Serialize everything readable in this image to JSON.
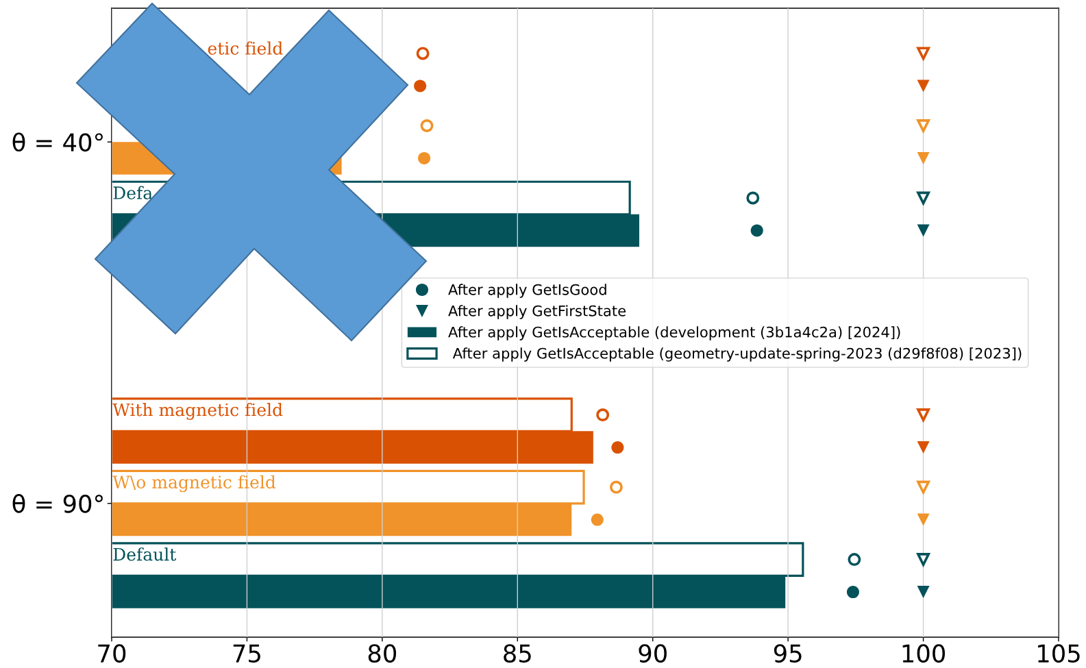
{
  "chart_data": {
    "type": "bar",
    "orientation": "horizontal",
    "categories": [
      "θ = 40°",
      "θ = 90°"
    ],
    "xlim": [
      70,
      105
    ],
    "xticks": [
      70,
      75,
      80,
      85,
      90,
      95,
      100,
      105
    ],
    "grid": "x",
    "legend": "right",
    "annotations": [
      "etic field"
    ],
    "series": [
      {
        "type": "scatter",
        "marker": "circle",
        "color": "#d95204",
        "values": [
          81.5,
          88.15
        ]
      },
      {
        "type": "scatter",
        "marker": "circle",
        "color": "#d95204",
        "values": [
          81.4,
          88.7
        ]
      },
      {
        "type": "scatter",
        "marker": "circle",
        "color": "#f0932a",
        "values": [
          81.65,
          88.65
        ]
      },
      {
        "type": "scatter",
        "marker": "circle",
        "color": "#f0932a",
        "values": [
          81.55,
          87.95
        ]
      },
      {
        "type": "scatter",
        "marker": "circle",
        "color": "#04525a",
        "values": [
          93.7,
          97.45
        ]
      },
      {
        "type": "scatter",
        "marker": "circle",
        "color": "#04525a",
        "name": "After apply GetIsGood",
        "values": [
          93.85,
          97.4
        ]
      },
      {
        "type": "scatter",
        "marker": "triangle",
        "color": "#d95204",
        "values": [
          100,
          100
        ]
      },
      {
        "type": "scatter",
        "marker": "triangle",
        "color": "#d95204",
        "values": [
          100,
          100
        ]
      },
      {
        "type": "scatter",
        "marker": "triangle",
        "color": "#f0932a",
        "values": [
          100,
          100
        ]
      },
      {
        "type": "scatter",
        "marker": "triangle",
        "color": "#f0932a",
        "values": [
          100,
          100
        ]
      },
      {
        "type": "scatter",
        "marker": "triangle",
        "color": "#04525a",
        "values": [
          100,
          100
        ]
      },
      {
        "type": "scatter",
        "marker": "triangle",
        "color": "#04525a",
        "name": "After apply GetFirstState",
        "values": [
          100,
          100
        ]
      },
      {
        "color": "#d95204",
        "values": [
          null,
          87.0
        ],
        "value_labels": [
          null,
          "With magnetic field"
        ]
      },
      {
        "color": "#d95204",
        "values": [
          null,
          87.8
        ]
      },
      {
        "color": "#f0932a",
        "values": [
          null,
          87.45
        ],
        "value_labels": [
          null,
          "W\\o magnetic field"
        ]
      },
      {
        "color": "#f0932a",
        "values": [
          78.5,
          87.0
        ]
      },
      {
        "color": "#04525a",
        "name": " After apply GetIsAcceptable (geometry-update-spring-2023 (d29f8f08) [2023])",
        "values": [
          89.15,
          95.55
        ],
        "value_labels": [
          "Defa",
          "Default"
        ]
      },
      {
        "color": "#04525a",
        "name": "After apply GetIsAcceptable (development (3b1a4c2a) [2024])",
        "values": [
          89.5,
          94.9
        ]
      }
    ]
  }
}
